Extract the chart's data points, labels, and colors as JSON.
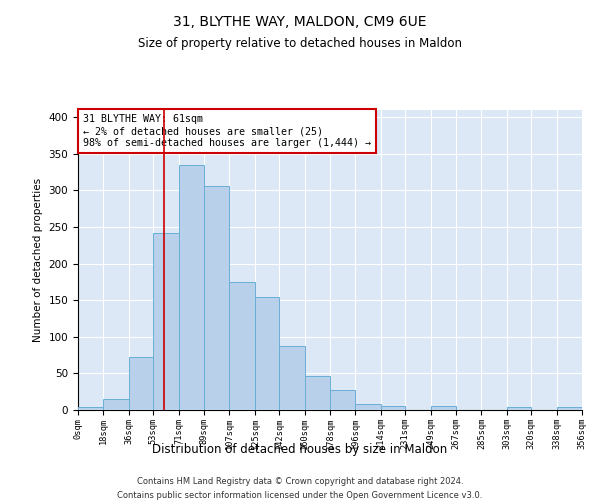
{
  "title": "31, BLYTHE WAY, MALDON, CM9 6UE",
  "subtitle": "Size of property relative to detached houses in Maldon",
  "xlabel": "Distribution of detached houses by size in Maldon",
  "ylabel": "Number of detached properties",
  "bar_color": "#b8d0ea",
  "bar_edge_color": "#6aaed6",
  "background_color": "#dce8f5",
  "fig_background": "#ffffff",
  "bin_labels": [
    "0sqm",
    "18sqm",
    "36sqm",
    "53sqm",
    "71sqm",
    "89sqm",
    "107sqm",
    "125sqm",
    "142sqm",
    "160sqm",
    "178sqm",
    "196sqm",
    "214sqm",
    "231sqm",
    "249sqm",
    "267sqm",
    "285sqm",
    "303sqm",
    "320sqm",
    "338sqm",
    "356sqm"
  ],
  "bar_values": [
    4,
    15,
    72,
    242,
    335,
    306,
    175,
    155,
    88,
    46,
    27,
    8,
    5,
    0,
    5,
    0,
    0,
    4,
    0,
    4
  ],
  "bin_edges": [
    0,
    18,
    36,
    53,
    71,
    89,
    107,
    125,
    142,
    160,
    178,
    196,
    214,
    231,
    249,
    267,
    285,
    303,
    320,
    338,
    356
  ],
  "property_size": 61,
  "annotation_line1": "31 BLYTHE WAY: 61sqm",
  "annotation_line2": "← 2% of detached houses are smaller (25)",
  "annotation_line3": "98% of semi-detached houses are larger (1,444) →",
  "vline_color": "#cc0000",
  "annotation_box_facecolor": "#ffffff",
  "annotation_box_edgecolor": "#cc0000",
  "ylim": [
    0,
    410
  ],
  "yticks": [
    0,
    50,
    100,
    150,
    200,
    250,
    300,
    350,
    400
  ],
  "footer_line1": "Contains HM Land Registry data © Crown copyright and database right 2024.",
  "footer_line2": "Contains public sector information licensed under the Open Government Licence v3.0."
}
